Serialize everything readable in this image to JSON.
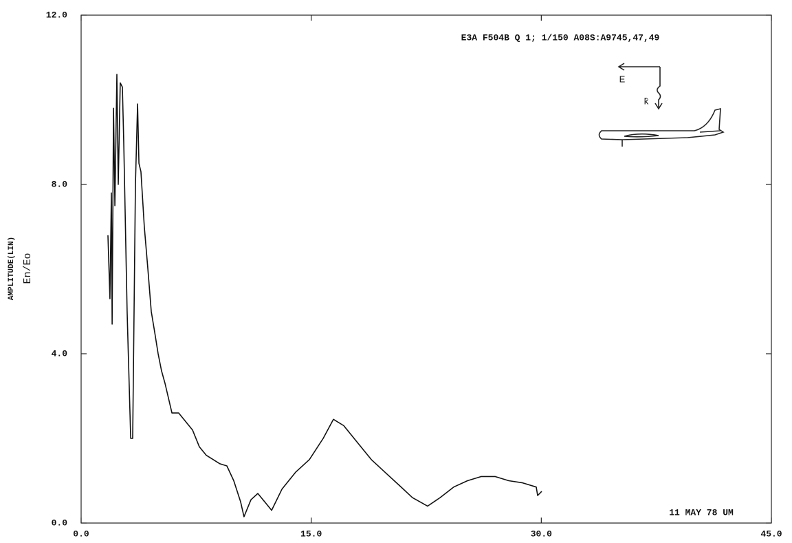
{
  "chart_data": {
    "type": "line",
    "title": "E3A F504B Q 1; 1/150 A08S:A9745,47,49",
    "annotation": "11 MAY 78 UM",
    "y_label": "AMPLITUDE(LIN)",
    "y_label_2": "En/Eo",
    "diagram_labels": [
      "E",
      "k̂"
    ],
    "color": "#111111",
    "x": [
      1.75,
      1.88,
      1.97,
      2.02,
      2.11,
      2.2,
      2.33,
      2.42,
      2.55,
      2.69,
      2.78,
      3.0,
      3.23,
      3.36,
      3.54,
      3.68,
      3.77,
      3.9,
      4.12,
      4.35,
      4.57,
      4.8,
      5.02,
      5.24,
      5.47,
      5.92,
      6.36,
      6.81,
      7.26,
      7.71,
      8.16,
      8.61,
      9.05,
      9.5,
      9.95,
      10.4,
      10.62,
      11.07,
      11.52,
      11.97,
      12.42,
      13.09,
      13.98,
      14.88,
      15.78,
      16.45,
      17.12,
      18.02,
      18.92,
      19.81,
      20.71,
      21.6,
      22.59,
      23.4,
      24.29,
      25.19,
      26.09,
      26.98,
      27.88,
      28.78,
      29.67,
      29.76,
      30.03
    ],
    "values": [
      6.8,
      5.3,
      7.8,
      4.7,
      9.8,
      7.5,
      10.6,
      8.0,
      10.4,
      10.3,
      9.0,
      5.0,
      2.0,
      2.0,
      8.0,
      9.9,
      8.5,
      8.3,
      7.0,
      6.0,
      5.0,
      4.5,
      4.0,
      3.6,
      3.3,
      2.6,
      2.6,
      2.4,
      2.2,
      1.8,
      1.6,
      1.5,
      1.4,
      1.35,
      1.0,
      0.5,
      0.15,
      0.55,
      0.7,
      0.5,
      0.3,
      0.8,
      1.2,
      1.5,
      2.0,
      2.45,
      2.3,
      1.9,
      1.5,
      1.2,
      0.9,
      0.6,
      0.4,
      0.6,
      0.85,
      1.0,
      1.1,
      1.1,
      1.0,
      0.95,
      0.85,
      0.65,
      0.75
    ],
    "xlim": [
      0,
      45
    ],
    "ylim": [
      0,
      12
    ],
    "xticks": [
      {
        "value": 0,
        "label": "0.0"
      },
      {
        "value": 15,
        "label": "15.0"
      },
      {
        "value": 30,
        "label": "30.0"
      },
      {
        "value": 45,
        "label": "45.0"
      }
    ],
    "yticks": [
      {
        "value": 0,
        "label": "0.0"
      },
      {
        "value": 4,
        "label": "4.0"
      },
      {
        "value": 8,
        "label": "8.0"
      },
      {
        "value": 12,
        "label": "12.0"
      }
    ],
    "grid": false
  }
}
